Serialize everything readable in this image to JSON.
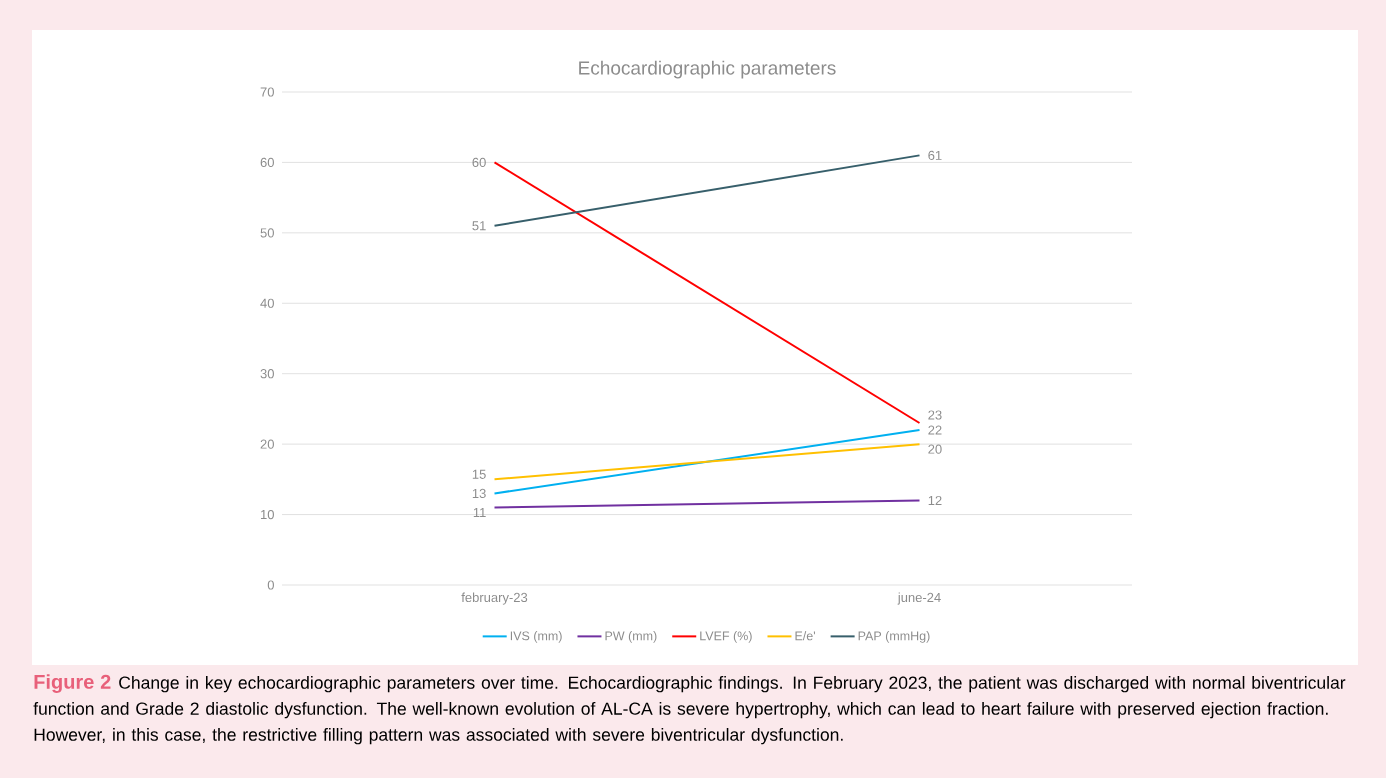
{
  "chart_data": {
    "type": "line",
    "title": "Echocardiographic parameters",
    "categories": [
      "february-23",
      "june-24"
    ],
    "series": [
      {
        "name": "IVS (mm)",
        "color": "#00b0f0",
        "values": [
          13,
          22
        ]
      },
      {
        "name": "PW (mm)",
        "color": "#7030a0",
        "values": [
          11,
          12
        ]
      },
      {
        "name": "LVEF (%)",
        "color": "#ff0000",
        "values": [
          60,
          23
        ]
      },
      {
        "name": "E/e'",
        "color": "#ffc000",
        "values": [
          15,
          20
        ]
      },
      {
        "name": "PAP (mmHg)",
        "color": "#375f6b",
        "values": [
          51,
          61
        ]
      }
    ],
    "ylim": [
      0,
      70
    ],
    "yticks": [
      0,
      10,
      20,
      30,
      40,
      50,
      60,
      70
    ],
    "grid": "y",
    "legend": "bottom",
    "data_labels": true,
    "marker": "none",
    "line_style": "solid",
    "annotations": [
      "Figure 2",
      "Change in key echocardiographic parameters over time. Echocardiographic findings. In February 2023, the patient was discharged with normal biventricular function and Grade 2 diastolic dysfunction. The well-known evolution of AL-CA is severe hypertrophy, which can lead to heart failure with preserved ejection fraction. However, in this case, the restrictive filling pattern was associated with severe biventricular dysfunction."
    ]
  }
}
